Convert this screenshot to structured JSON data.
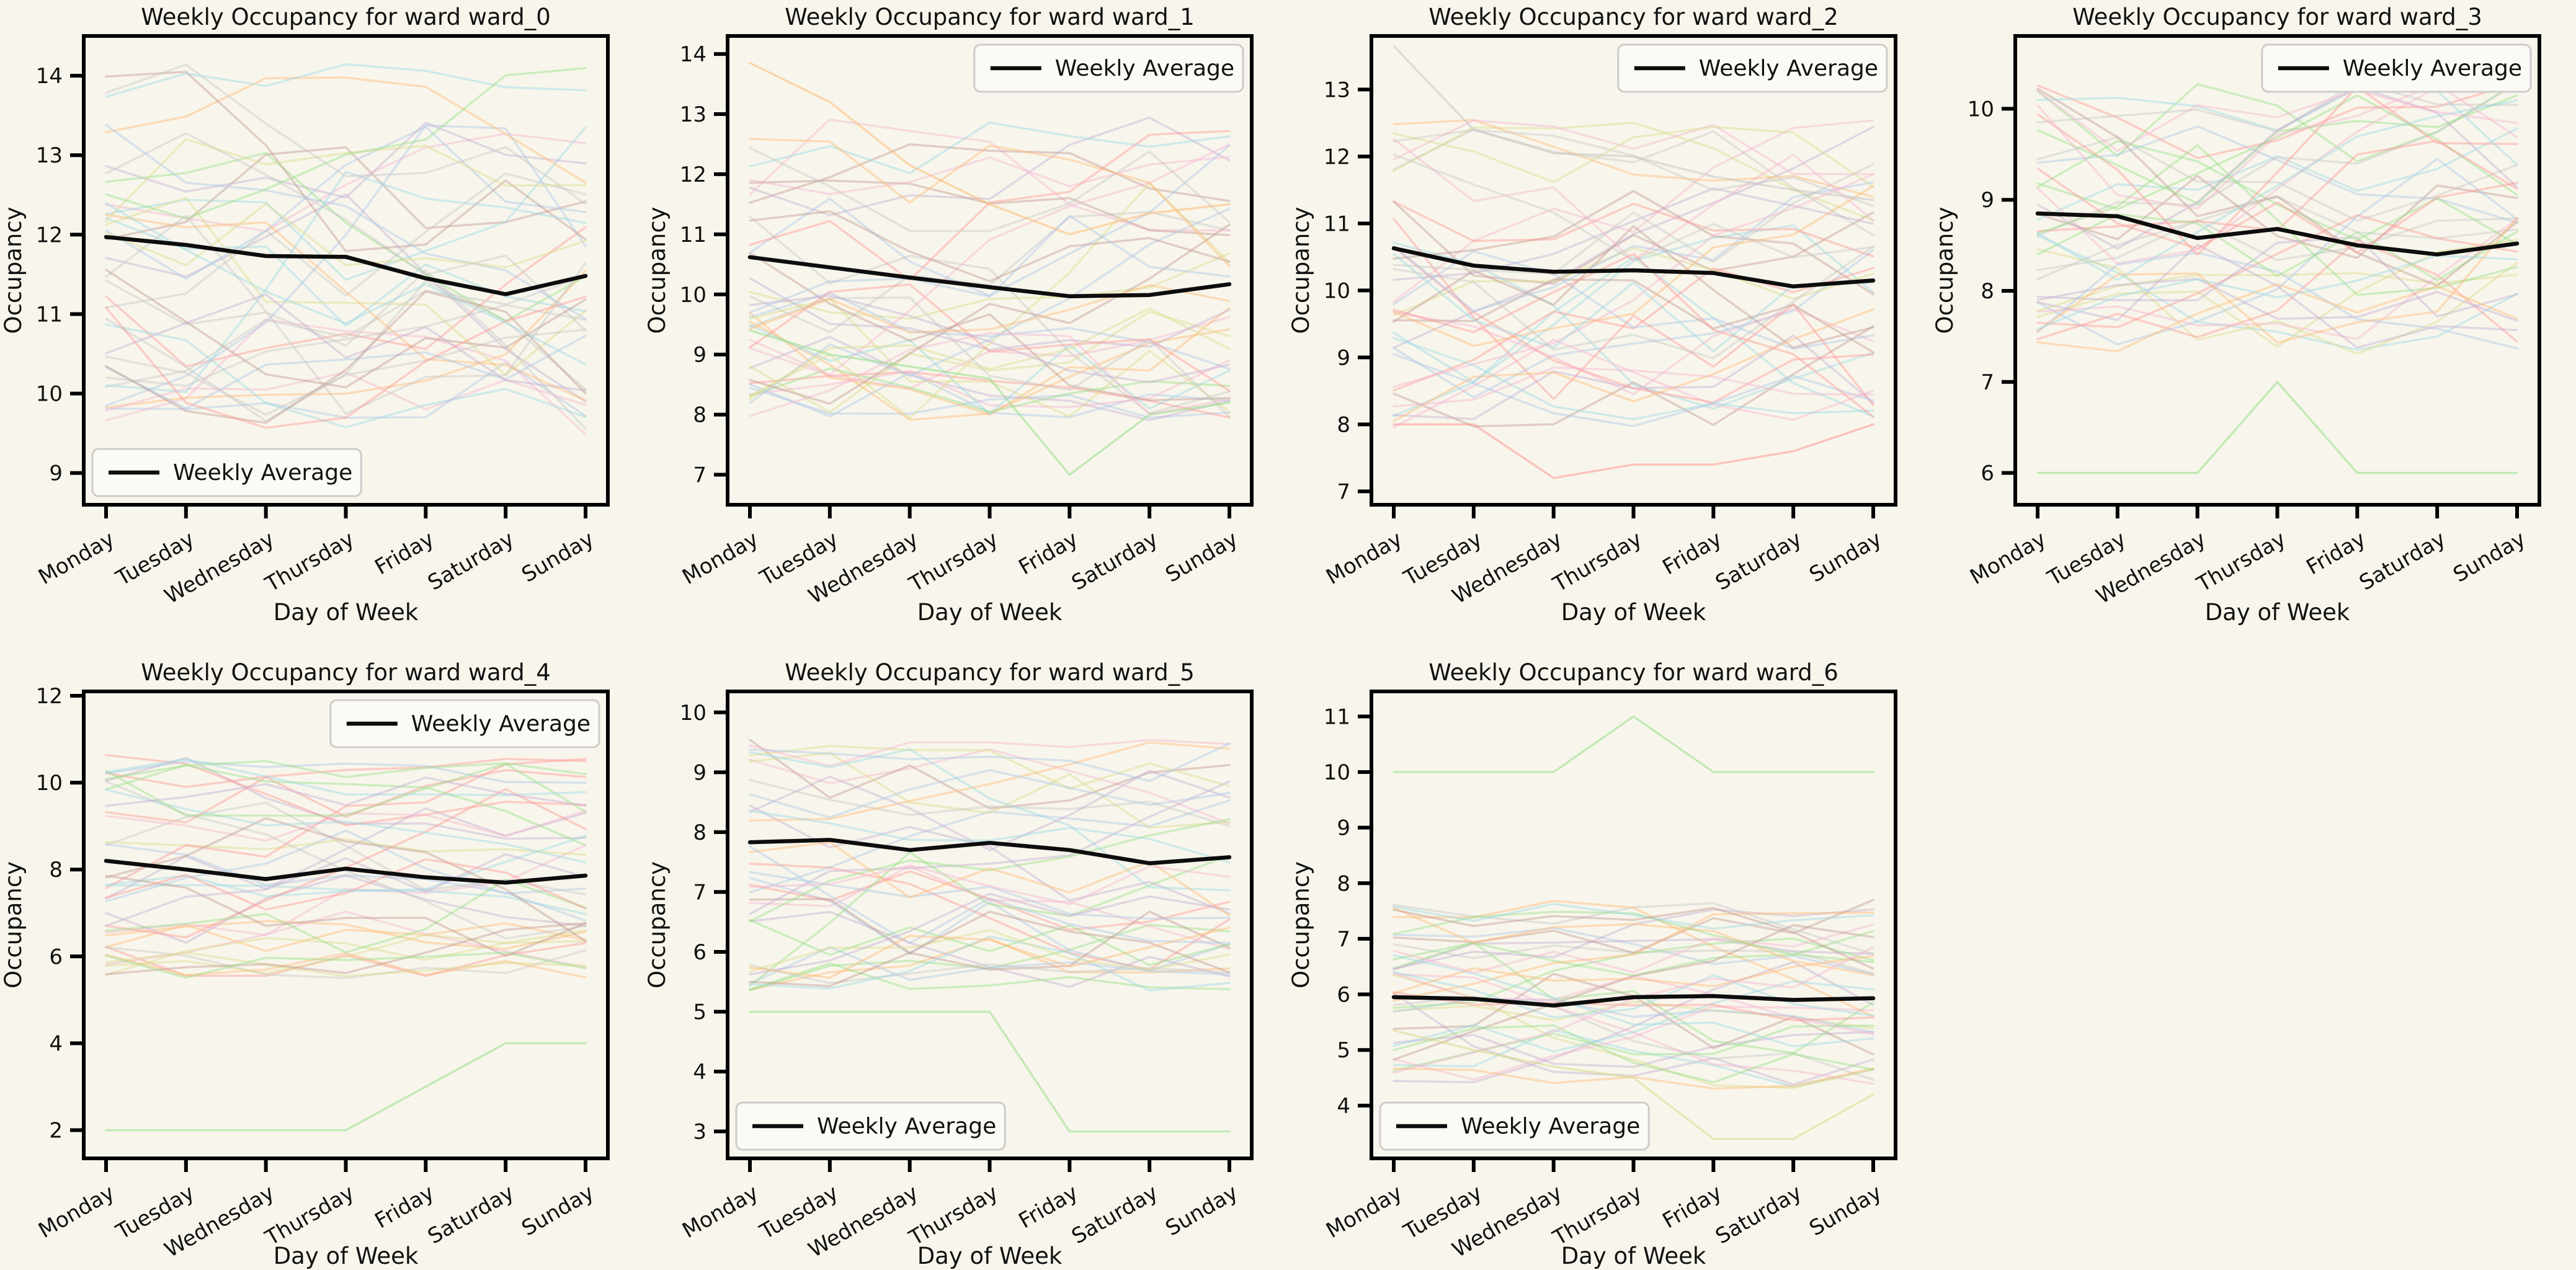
{
  "figure": {
    "background": "#f8f6ec",
    "text_color": "#111111",
    "axis_color": "#000000"
  },
  "shared": {
    "palette": [
      "#aec7e8",
      "#ffbb78",
      "#98df8a",
      "#ff9896",
      "#c5b0d5",
      "#c49c94",
      "#f7b6d2",
      "#c7c7c7",
      "#dbdb8d",
      "#9edae5"
    ],
    "background_line_alpha": 0.45,
    "outlier_line_alpha": 0.55,
    "average_line_color": "#0d0d0d",
    "legend_border_color": "#cccccc",
    "legend_background": "#fcfaf4"
  },
  "chart_data": [
    {
      "id": "ward_0",
      "type": "line",
      "title": "Weekly Occupancy for ward ward_0",
      "xlabel": "Day of Week",
      "ylabel": "Occupancy",
      "categories": [
        "Monday",
        "Tuesday",
        "Wednesday",
        "Thursday",
        "Friday",
        "Saturday",
        "Sunday"
      ],
      "ylim": [
        8.6,
        14.5
      ],
      "yticks": [
        9,
        10,
        11,
        12,
        13,
        14
      ],
      "legend": {
        "label": "Weekly Average",
        "loc": "lower left"
      },
      "average_series": {
        "name": "Weekly Average",
        "values": [
          11.97,
          11.87,
          11.73,
          11.72,
          11.45,
          11.25,
          11.48
        ]
      },
      "outlier_series": [],
      "background_series": {
        "count": 40,
        "seed": 11,
        "range": [
          9.45,
          14.15
        ],
        "step": 1.5
      }
    },
    {
      "id": "ward_1",
      "type": "line",
      "title": "Weekly Occupancy for ward ward_1",
      "xlabel": "Day of Week",
      "ylabel": "Occupancy",
      "categories": [
        "Monday",
        "Tuesday",
        "Wednesday",
        "Thursday",
        "Friday",
        "Saturday",
        "Sunday"
      ],
      "ylim": [
        6.5,
        14.3
      ],
      "yticks": [
        7,
        8,
        9,
        10,
        11,
        12,
        13,
        14
      ],
      "legend": {
        "label": "Weekly Average",
        "loc": "upper right"
      },
      "average_series": {
        "name": "Weekly Average",
        "values": [
          10.62,
          10.45,
          10.28,
          10.12,
          9.97,
          9.99,
          10.17
        ]
      },
      "outlier_series": [
        {
          "color": "#ffbb78",
          "values": [
            13.85,
            13.2,
            12.15,
            11.5,
            11.0,
            11.35,
            11.5
          ]
        },
        {
          "color": "#98df8a",
          "values": [
            9.4,
            9.0,
            8.8,
            8.6,
            7.0,
            8.0,
            8.2
          ]
        }
      ],
      "background_series": {
        "count": 40,
        "seed": 22,
        "range": [
          7.9,
          13.0
        ],
        "step": 1.5
      }
    },
    {
      "id": "ward_2",
      "type": "line",
      "title": "Weekly Occupancy for ward ward_2",
      "xlabel": "Day of Week",
      "ylabel": "Occupancy",
      "categories": [
        "Monday",
        "Tuesday",
        "Wednesday",
        "Thursday",
        "Friday",
        "Saturday",
        "Sunday"
      ],
      "ylim": [
        6.8,
        13.8
      ],
      "yticks": [
        7,
        8,
        9,
        10,
        11,
        12,
        13
      ],
      "legend": {
        "label": "Weekly Average",
        "loc": "upper right"
      },
      "average_series": {
        "name": "Weekly Average",
        "values": [
          10.63,
          10.37,
          10.28,
          10.3,
          10.26,
          10.06,
          10.15
        ]
      },
      "outlier_series": [
        {
          "color": "#c7c7c7",
          "values": [
            13.65,
            12.4,
            12.05,
            12.0,
            11.7,
            11.5,
            11.35
          ]
        },
        {
          "color": "#ff9896",
          "values": [
            8.0,
            8.0,
            7.2,
            7.4,
            7.4,
            7.6,
            8.0
          ]
        }
      ],
      "background_series": {
        "count": 40,
        "seed": 33,
        "range": [
          7.85,
          12.55
        ],
        "step": 1.4
      }
    },
    {
      "id": "ward_3",
      "type": "line",
      "title": "Weekly Occupancy for ward ward_3",
      "xlabel": "Day of Week",
      "ylabel": "Occupancy",
      "categories": [
        "Monday",
        "Tuesday",
        "Wednesday",
        "Thursday",
        "Friday",
        "Saturday",
        "Sunday"
      ],
      "ylim": [
        5.65,
        10.8
      ],
      "yticks": [
        6,
        7,
        8,
        9,
        10
      ],
      "legend": {
        "label": "Weekly Average",
        "loc": "upper right"
      },
      "average_series": {
        "name": "Weekly Average",
        "values": [
          8.85,
          8.82,
          8.58,
          8.68,
          8.5,
          8.4,
          8.52
        ]
      },
      "outlier_series": [
        {
          "color": "#98df8a",
          "values": [
            6,
            6,
            6,
            7,
            6,
            6,
            6
          ]
        }
      ],
      "background_series": {
        "count": 40,
        "seed": 44,
        "range": [
          7.3,
          10.3
        ],
        "step": 1.1
      }
    },
    {
      "id": "ward_4",
      "type": "line",
      "title": "Weekly Occupancy for ward ward_4",
      "xlabel": "Day of Week",
      "ylabel": "Occupancy",
      "categories": [
        "Monday",
        "Tuesday",
        "Wednesday",
        "Thursday",
        "Friday",
        "Saturday",
        "Sunday"
      ],
      "ylim": [
        1.35,
        12.1
      ],
      "yticks": [
        2,
        4,
        6,
        8,
        10,
        12
      ],
      "legend": {
        "label": "Weekly Average",
        "loc": "upper right"
      },
      "average_series": {
        "name": "Weekly Average",
        "values": [
          8.2,
          8.0,
          7.78,
          8.02,
          7.82,
          7.7,
          7.86
        ]
      },
      "outlier_series": [
        {
          "color": "#98df8a",
          "values": [
            2,
            2,
            2,
            2,
            3,
            4,
            4
          ]
        }
      ],
      "background_series": {
        "count": 40,
        "seed": 55,
        "range": [
          5.5,
          10.7
        ],
        "step": 1.2
      }
    },
    {
      "id": "ward_5",
      "type": "line",
      "title": "Weekly Occupancy for ward ward_5",
      "xlabel": "Day of Week",
      "ylabel": "Occupancy",
      "categories": [
        "Monday",
        "Tuesday",
        "Wednesday",
        "Thursday",
        "Friday",
        "Saturday",
        "Sunday"
      ],
      "ylim": [
        2.55,
        10.35
      ],
      "yticks": [
        3,
        4,
        5,
        6,
        7,
        8,
        9,
        10
      ],
      "legend": {
        "label": "Weekly Average",
        "loc": "lower left"
      },
      "average_series": {
        "name": "Weekly Average",
        "values": [
          7.83,
          7.87,
          7.7,
          7.82,
          7.7,
          7.48,
          7.58
        ]
      },
      "outlier_series": [
        {
          "color": "#98df8a",
          "values": [
            5,
            5,
            5,
            5,
            3,
            3,
            3
          ]
        }
      ],
      "background_series": {
        "count": 38,
        "seed": 66,
        "range": [
          5.35,
          9.55
        ],
        "step": 1.2
      }
    },
    {
      "id": "ward_6",
      "type": "line",
      "title": "Weekly Occupancy for ward ward_6",
      "xlabel": "Day of Week",
      "ylabel": "Occupancy",
      "categories": [
        "Monday",
        "Tuesday",
        "Wednesday",
        "Thursday",
        "Friday",
        "Saturday",
        "Sunday"
      ],
      "ylim": [
        3.05,
        11.45
      ],
      "yticks": [
        4,
        5,
        6,
        7,
        8,
        9,
        10,
        11
      ],
      "legend": {
        "label": "Weekly Average",
        "loc": "lower left"
      },
      "average_series": {
        "name": "Weekly Average",
        "values": [
          5.95,
          5.92,
          5.8,
          5.95,
          5.97,
          5.9,
          5.93
        ]
      },
      "outlier_series": [
        {
          "color": "#98df8a",
          "values": [
            10,
            10,
            10,
            11,
            10,
            10,
            10
          ]
        },
        {
          "color": "#dbdb8d",
          "values": [
            5.35,
            5.0,
            4.7,
            4.5,
            3.4,
            3.4,
            4.2
          ]
        }
      ],
      "background_series": {
        "count": 38,
        "seed": 77,
        "range": [
          4.3,
          7.7
        ],
        "step": 1.0
      }
    }
  ]
}
